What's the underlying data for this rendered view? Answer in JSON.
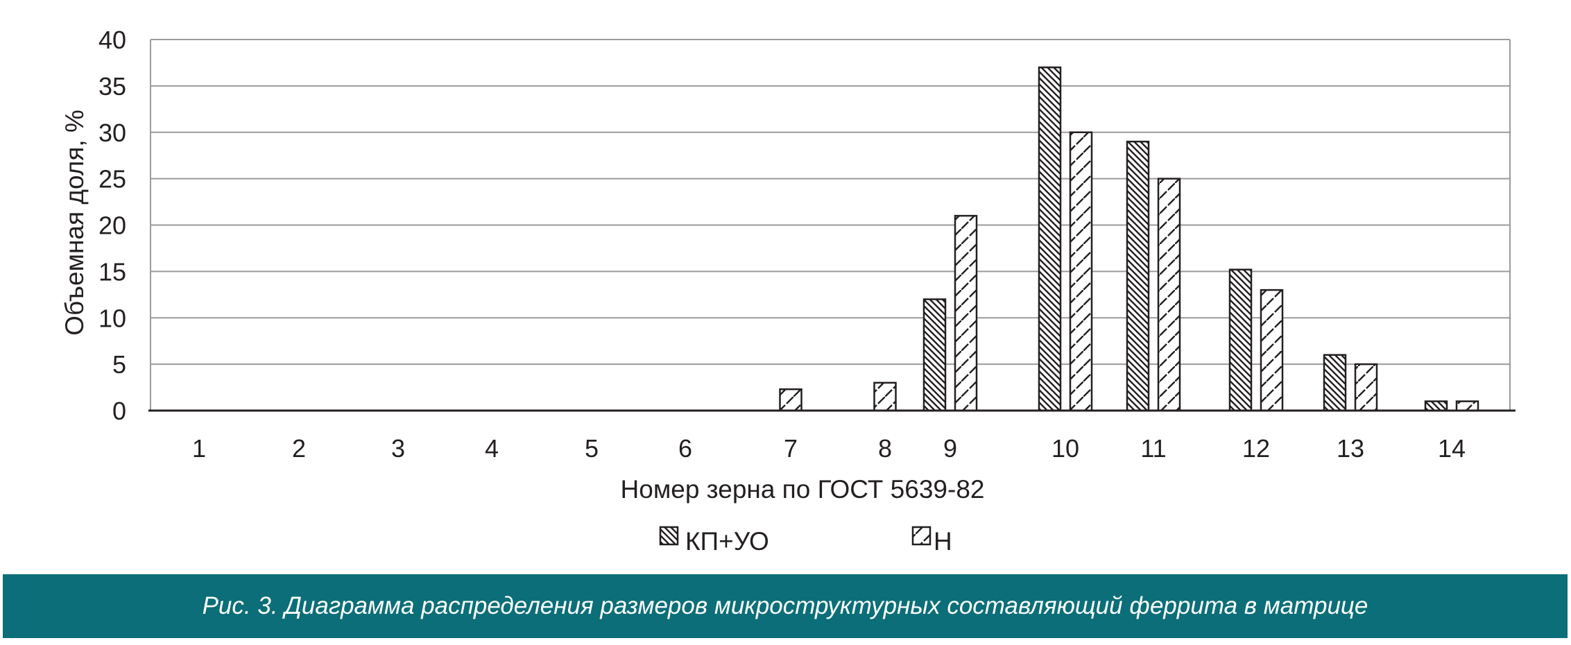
{
  "colors": {
    "caption_bg": "#0b6e78",
    "caption_text": "#ffffff",
    "gridline": "#9a9a9a",
    "bar_stroke": "#231f20",
    "text": "#231f20"
  },
  "caption": {
    "text": "Рис. 3. Диаграмма распределения размеров микроструктурных составляющий феррита в матрице"
  },
  "chart_data": {
    "type": "bar",
    "title": "",
    "xlabel": "Номер зерна по ГОСТ 5639-82",
    "ylabel": "Объемная доля, %",
    "ylim": [
      0,
      40
    ],
    "yticks": [
      "0",
      "5",
      "10",
      "15",
      "20",
      "25",
      "30",
      "35",
      "40"
    ],
    "grid": true,
    "legend_position": "bottom",
    "categories": [
      "1",
      "2",
      "3",
      "4",
      "5",
      "6",
      "7",
      "8",
      "9",
      "10",
      "11",
      "12",
      "13",
      "14"
    ],
    "series": [
      {
        "name": "КП+УО",
        "pattern": "backslash-hatch",
        "values": [
          0,
          0,
          0,
          0,
          0,
          0,
          0,
          0,
          12,
          37,
          29,
          15.2,
          6,
          1
        ]
      },
      {
        "name": "Н",
        "pattern": "slash-dash-hatch",
        "values": [
          0,
          0,
          0,
          0,
          0,
          0,
          2.3,
          3,
          21,
          30,
          25,
          13,
          5,
          1
        ]
      }
    ]
  }
}
